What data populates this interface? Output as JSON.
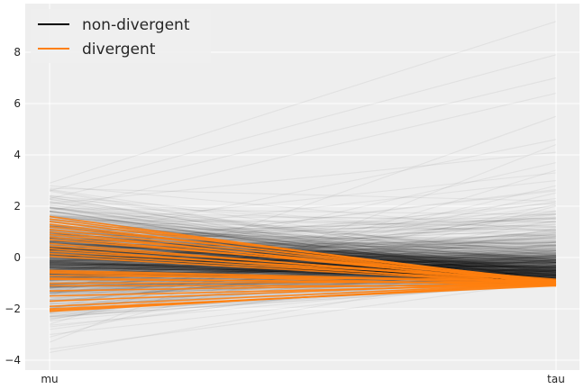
{
  "chart_data": {
    "type": "line",
    "subtype": "parallel-coordinates",
    "title": "",
    "xlabel": "",
    "ylabel": "",
    "x": [
      "mu",
      "tau"
    ],
    "ylim": [
      -4.3,
      9.8
    ],
    "yticks": [
      -4,
      -2,
      0,
      2,
      4,
      6,
      8
    ],
    "grid": true,
    "legend": {
      "position": "top-left",
      "entries": [
        {
          "label": "non-divergent",
          "color": "#000000"
        },
        {
          "label": "divergent",
          "color": "#ff7f0e"
        }
      ]
    },
    "colors": {
      "background": "#eeeeee",
      "grid": "#ffffff",
      "nondivergent": "#000000",
      "divergent": "#ff7f0e"
    },
    "series": [
      {
        "name": "non-divergent",
        "color": "#000000",
        "opacity": 0.05,
        "samples": 900,
        "mu_range": [
          -3.7,
          2.9
        ],
        "tau_range": [
          -1.1,
          9.2
        ],
        "pairs": [
          [
            -3.7,
            -0.3
          ],
          [
            -3.3,
            4.4
          ],
          [
            -3.1,
            2.0
          ],
          [
            -2.8,
            -0.2
          ],
          [
            2.9,
            9.2
          ],
          [
            2.6,
            7.9
          ],
          [
            2.3,
            7.0
          ],
          [
            1.8,
            6.4
          ],
          [
            -1.5,
            5.5
          ],
          [
            0.6,
            4.6
          ],
          [
            2.1,
            4.1
          ],
          [
            -0.8,
            3.7
          ],
          [
            1.2,
            3.3
          ],
          [
            -2.0,
            2.8
          ],
          [
            0.3,
            2.6
          ],
          [
            2.7,
            2.2
          ],
          [
            -1.2,
            1.8
          ],
          [
            0.9,
            1.5
          ],
          [
            1.5,
            1.2
          ],
          [
            -0.4,
            1.0
          ],
          [
            2.4,
            0.8
          ],
          [
            -2.4,
            0.6
          ],
          [
            0.1,
            0.4
          ],
          [
            1.9,
            0.2
          ],
          [
            -1.7,
            0.1
          ],
          [
            1.0,
            -0.1
          ],
          [
            -0.6,
            -0.3
          ],
          [
            0.5,
            -0.5
          ],
          [
            -1.0,
            -0.7
          ],
          [
            2.2,
            -0.9
          ],
          [
            -2.2,
            -1.0
          ],
          [
            1.6,
            -1.05
          ],
          [
            -0.2,
            2.3
          ],
          [
            0.8,
            3.0
          ],
          [
            -2.6,
            3.4
          ],
          [
            2.8,
            1.0
          ],
          [
            -3.0,
            -0.8
          ]
        ]
      },
      {
        "name": "divergent",
        "color": "#ff7f0e",
        "opacity": 0.9,
        "pairs": [
          [
            1.6,
            -1.1
          ],
          [
            1.5,
            -1.0
          ],
          [
            1.4,
            -0.95
          ],
          [
            1.3,
            -1.05
          ],
          [
            1.2,
            -0.9
          ],
          [
            1.1,
            -1.0
          ],
          [
            1.0,
            -1.1
          ],
          [
            0.9,
            -0.95
          ],
          [
            0.8,
            -1.0
          ],
          [
            0.7,
            -0.85
          ],
          [
            0.55,
            -1.05
          ],
          [
            0.45,
            -0.95
          ],
          [
            0.35,
            -1.1
          ],
          [
            0.25,
            -0.9
          ],
          [
            0.15,
            -1.0
          ],
          [
            0.05,
            -1.05
          ],
          [
            -0.5,
            -0.95
          ],
          [
            -0.55,
            -1.0
          ],
          [
            -0.6,
            -1.1
          ],
          [
            -0.7,
            -0.9
          ],
          [
            -0.8,
            -1.05
          ],
          [
            -0.85,
            -1.0
          ],
          [
            -1.0,
            -0.95
          ],
          [
            -1.1,
            -1.1
          ],
          [
            -1.3,
            -1.0
          ],
          [
            -1.5,
            -1.05
          ],
          [
            -1.7,
            -0.95
          ],
          [
            -1.9,
            -1.0
          ],
          [
            -2.0,
            -1.1
          ],
          [
            -2.05,
            -1.05
          ],
          [
            -2.1,
            -1.0
          ]
        ]
      }
    ]
  }
}
